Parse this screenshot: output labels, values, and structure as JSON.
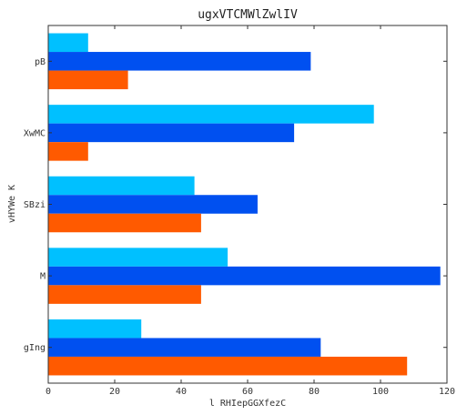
{
  "chart_data": {
    "type": "bar",
    "orientation": "horizontal",
    "title": "ugxVTCMWlZwlIV",
    "xlabel": "l RHIepGGXfezC",
    "ylabel": "vHYWe K",
    "categories": [
      "pB",
      "XwMC",
      "SBzi",
      "M",
      "gIng"
    ],
    "xlim": [
      0,
      120
    ],
    "xticks": [
      0,
      20,
      40,
      60,
      80,
      100,
      120
    ],
    "grid": false,
    "series": [
      {
        "color": "#00c0ff",
        "values": [
          12,
          98,
          44,
          54,
          28
        ]
      },
      {
        "color": "#0050f0",
        "values": [
          79,
          74,
          63,
          118,
          82
        ]
      },
      {
        "color": "#ff5a00",
        "values": [
          24,
          12,
          46,
          46,
          108
        ]
      }
    ]
  }
}
